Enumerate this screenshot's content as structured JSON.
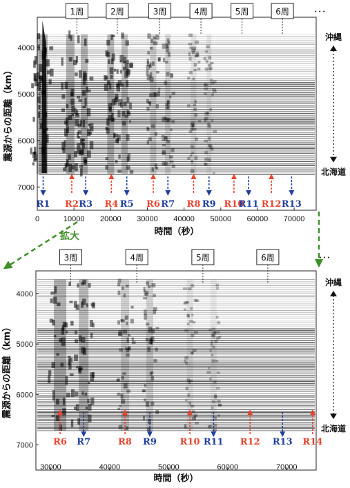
{
  "colors": {
    "reflection_red": "#e8452f",
    "reflection_blue": "#1f3f9f",
    "zoom_arrow": "#3f8f2a"
  },
  "zoom_label": "拡大",
  "chart_data": [
    {
      "type": "heatmap",
      "xlabel": "時間（秒）",
      "ylabel": "震源からの距離（km）",
      "xlim": [
        0,
        76000
      ],
      "ylim": [
        3350,
        7500
      ],
      "x_ticks": [
        0,
        10000,
        20000,
        30000,
        40000,
        50000,
        60000,
        70000
      ],
      "y_ticks": [
        4000,
        5000,
        6000,
        7000
      ],
      "grid": false,
      "laps": [
        {
          "label": "1周",
          "x": 10800
        },
        {
          "label": "2周",
          "x": 21800
        },
        {
          "label": "3周",
          "x": 33400
        },
        {
          "label": "4周",
          "x": 44600
        },
        {
          "label": "5周",
          "x": 55800
        },
        {
          "label": "6周",
          "x": 66800
        },
        {
          "label": "･･･",
          "x": 77000
        }
      ],
      "side_labels": {
        "top": "沖縄",
        "bottom": "北海道"
      },
      "reflections": [
        {
          "label": "R1",
          "x": 1600,
          "dir": "down",
          "color": "blue"
        },
        {
          "label": "R2",
          "x": 9400,
          "dir": "up",
          "color": "red"
        },
        {
          "label": "R3",
          "x": 13200,
          "dir": "down",
          "color": "blue"
        },
        {
          "label": "R4",
          "x": 20200,
          "dir": "up",
          "color": "red"
        },
        {
          "label": "R5",
          "x": 24400,
          "dir": "down",
          "color": "blue"
        },
        {
          "label": "R6",
          "x": 31600,
          "dir": "up",
          "color": "red"
        },
        {
          "label": "R7",
          "x": 35600,
          "dir": "down",
          "color": "blue"
        },
        {
          "label": "R8",
          "x": 42600,
          "dir": "up",
          "color": "red"
        },
        {
          "label": "R9",
          "x": 46800,
          "dir": "down",
          "color": "blue"
        },
        {
          "label": "R10",
          "x": 53600,
          "dir": "up",
          "color": "red"
        },
        {
          "label": "R11",
          "x": 57600,
          "dir": "down",
          "color": "blue"
        },
        {
          "label": "R12",
          "x": 63800,
          "dir": "up",
          "color": "red"
        },
        {
          "label": "R13",
          "x": 69300,
          "dir": "down",
          "color": "blue"
        }
      ]
    },
    {
      "type": "heatmap",
      "xlabel": "時間（秒）",
      "ylabel": "震源からの距離（km）",
      "xlim": [
        27500,
        75000
      ],
      "ylim": [
        3550,
        7500
      ],
      "x_ticks": [
        30000,
        40000,
        50000,
        60000,
        70000
      ],
      "y_ticks": [
        4000,
        5000,
        6000,
        7000
      ],
      "grid": false,
      "laps": [
        {
          "label": "3周",
          "x": 33400
        },
        {
          "label": "4周",
          "x": 44600
        },
        {
          "label": "5周",
          "x": 55800
        },
        {
          "label": "6周",
          "x": 66800
        },
        {
          "label": "･･･",
          "x": 78000
        }
      ],
      "side_labels": {
        "top": "沖縄",
        "bottom": "北海道"
      },
      "reflections": [
        {
          "label": "R6",
          "x": 31600,
          "dir": "up",
          "color": "red"
        },
        {
          "label": "R7",
          "x": 35600,
          "dir": "down",
          "color": "blue"
        },
        {
          "label": "R8",
          "x": 42600,
          "dir": "up",
          "color": "red"
        },
        {
          "label": "R9",
          "x": 46800,
          "dir": "down",
          "color": "blue"
        },
        {
          "label": "R10",
          "x": 53600,
          "dir": "up",
          "color": "red"
        },
        {
          "label": "R11",
          "x": 57600,
          "dir": "down",
          "color": "blue"
        },
        {
          "label": "R12",
          "x": 63800,
          "dir": "up",
          "color": "red"
        },
        {
          "label": "R13",
          "x": 69300,
          "dir": "down",
          "color": "blue"
        },
        {
          "label": "R14",
          "x": 74400,
          "dir": "up",
          "color": "red"
        }
      ]
    }
  ]
}
